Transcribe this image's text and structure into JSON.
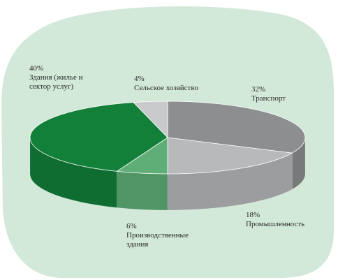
{
  "chart_data": {
    "type": "pie",
    "categories": [
      "Транспорт",
      "Промышленность",
      "Производственные здания",
      "Здания (жилье и сектор услуг)",
      "Сельское хозяйство"
    ],
    "values": [
      32,
      18,
      6,
      40,
      4
    ],
    "value_labels": [
      "32%",
      "18%",
      "6%",
      "40%",
      "4%"
    ],
    "colors": [
      "#8d8e90",
      "#b8b9bb",
      "#5fae78",
      "#13803a",
      "#c9cacc"
    ]
  }
}
